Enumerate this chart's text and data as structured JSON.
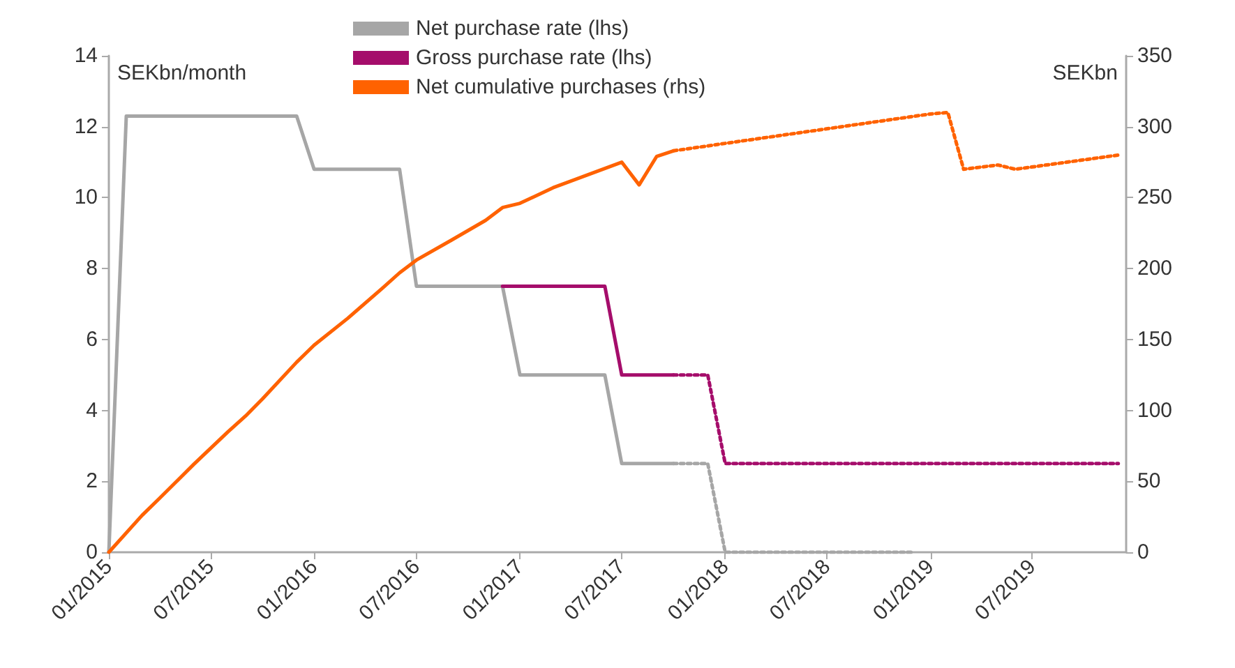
{
  "chart_data": {
    "type": "line",
    "ylabel": "SEKbn/month",
    "y2label": "SEKbn",
    "legend": "top",
    "grid": false,
    "line_style": "solid",
    "marker": "none",
    "xlim": [
      "2015-01",
      "2019-12-15"
    ],
    "xticks": [
      {
        "value": "2015-01",
        "label": "01/2015"
      },
      {
        "value": "2015-07",
        "label": "07/2015"
      },
      {
        "value": "2016-01",
        "label": "01/2016"
      },
      {
        "value": "2016-07",
        "label": "07/2016"
      },
      {
        "value": "2017-01",
        "label": "01/2017"
      },
      {
        "value": "2017-07",
        "label": "07/2017"
      },
      {
        "value": "2018-01",
        "label": "01/2018"
      },
      {
        "value": "2018-07",
        "label": "07/2018"
      },
      {
        "value": "2019-01",
        "label": "01/2019"
      },
      {
        "value": "2019-07",
        "label": "07/2019"
      }
    ],
    "ylim": [
      0,
      14
    ],
    "yticks": [
      0,
      2,
      4,
      6,
      8,
      10,
      12,
      14
    ],
    "y2lim": [
      0,
      350
    ],
    "y2ticks": [
      0,
      50,
      100,
      150,
      200,
      250,
      300,
      350
    ],
    "series": [
      {
        "name": "Net purchase rate (lhs)",
        "color": "#a6a6a6",
        "x": [
          "2015-01",
          "2015-02",
          "2015-12",
          "2016-01",
          "2016-06",
          "2016-07",
          "2016-12",
          "2017-01",
          "2017-06",
          "2017-07",
          "2017-10"
        ],
        "values": [
          0,
          12.3,
          12.3,
          10.8,
          10.8,
          7.5,
          7.5,
          5.0,
          5.0,
          2.5,
          2.5
        ]
      },
      {
        "name": "Gross purchase rate (lhs)",
        "color": "#a50d6b",
        "x": [
          "2016-12",
          "2017-06",
          "2017-07",
          "2017-10"
        ],
        "values": [
          7.5,
          7.5,
          5.0,
          5.0
        ]
      },
      {
        "name": "Net cumulative purchases (rhs)",
        "color": "#ff6200",
        "axis": "y2",
        "x": [
          "2015-01",
          "2015-03",
          "2015-04",
          "2015-06",
          "2015-08",
          "2015-09",
          "2015-10",
          "2015-12",
          "2016-01",
          "2016-03",
          "2016-05",
          "2016-06",
          "2016-07",
          "2016-09",
          "2016-11",
          "2016-12",
          "2017-01",
          "2017-03",
          "2017-05",
          "2017-07",
          "2017-08",
          "2017-09",
          "2017-10"
        ],
        "values": [
          0,
          26,
          38,
          62,
          85,
          96,
          108,
          134,
          146,
          165,
          186,
          197,
          206,
          220,
          234,
          243,
          246,
          257,
          266,
          275,
          259,
          279,
          283
        ]
      },
      {
        "color": "#a6a6a6",
        "line_style": "dotted",
        "x": [
          "2017-10",
          "2017-12",
          "2018-01",
          "2018-12"
        ],
        "values": [
          2.5,
          2.5,
          0,
          0
        ]
      },
      {
        "color": "#a50d6b",
        "line_style": "dotted",
        "x": [
          "2017-10",
          "2017-12",
          "2018-01",
          "2019-12"
        ],
        "values": [
          5.0,
          5.0,
          2.5,
          2.5
        ]
      },
      {
        "color": "#ff6200",
        "line_style": "dotted",
        "axis": "y2",
        "x": [
          "2017-10",
          "2019-01",
          "2019-02",
          "2019-03",
          "2019-05",
          "2019-06",
          "2019-12"
        ],
        "values": [
          283,
          309,
          310,
          270,
          273,
          270,
          280
        ]
      }
    ]
  }
}
